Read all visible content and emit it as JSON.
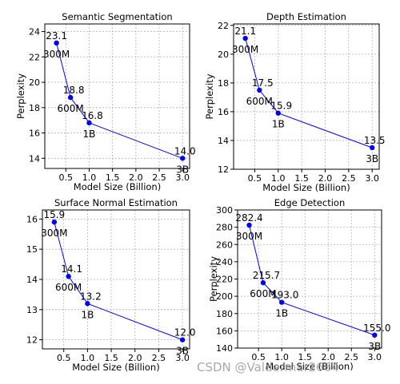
{
  "chart_data": [
    {
      "type": "line",
      "title": "Semantic Segmentation",
      "xlabel": "Model Size (Billion)",
      "ylabel": "Perplexity",
      "xlim": [
        0.05,
        3.15
      ],
      "ylim": [
        13.2,
        24.6
      ],
      "xticks": [
        0.5,
        1.0,
        1.5,
        2.0,
        2.5,
        3.0
      ],
      "yticks": [
        14,
        16,
        18,
        20,
        22,
        24
      ],
      "ytick_decimals": 0,
      "grid": true,
      "series": [
        {
          "x": [
            0.3,
            0.6,
            1.0,
            3.0
          ],
          "y": [
            23.1,
            18.8,
            16.8,
            14.0
          ],
          "value_labels": [
            "23.1",
            "18.8",
            "16.8",
            "14.0"
          ],
          "size_labels": [
            "300M",
            "600M",
            "1B",
            "3B"
          ]
        }
      ]
    },
    {
      "type": "line",
      "title": "Depth Estimation",
      "xlabel": "Model Size (Billion)",
      "ylabel": "Perplexity",
      "xlim": [
        0.05,
        3.15
      ],
      "ylim": [
        12.0,
        22.1
      ],
      "xticks": [
        0.5,
        1.0,
        1.5,
        2.0,
        2.5,
        3.0
      ],
      "yticks": [
        12,
        14,
        16,
        18,
        20,
        22
      ],
      "ytick_decimals": 0,
      "grid": true,
      "series": [
        {
          "x": [
            0.3,
            0.6,
            1.0,
            3.0
          ],
          "y": [
            21.1,
            17.5,
            15.9,
            13.5
          ],
          "value_labels": [
            "21.1",
            "17.5",
            "15.9",
            "13.5"
          ],
          "size_labels": [
            "300M",
            "600M",
            "1B",
            "3B"
          ]
        }
      ]
    },
    {
      "type": "line",
      "title": "Surface Normal Estimation",
      "xlabel": "Model Size (Billion)",
      "ylabel": "",
      "xlim": [
        0.05,
        3.15
      ],
      "ylim": [
        11.7,
        16.3
      ],
      "xticks": [
        0.5,
        1.0,
        1.5,
        2.0,
        2.5,
        3.0
      ],
      "yticks": [
        12,
        13,
        14,
        15,
        16
      ],
      "ytick_decimals": 0,
      "grid": true,
      "series": [
        {
          "x": [
            0.3,
            0.6,
            1.0,
            3.0
          ],
          "y": [
            15.9,
            14.1,
            13.2,
            12.0
          ],
          "value_labels": [
            "15.9",
            "14.1",
            "13.2",
            "12.0"
          ],
          "size_labels": [
            "300M",
            "600M",
            "1B",
            "3B"
          ]
        }
      ]
    },
    {
      "type": "line",
      "title": "Edge Detection",
      "xlabel": "Model Size (Billion)",
      "ylabel": "Perplexity",
      "xlim": [
        0.05,
        3.15
      ],
      "ylim": [
        140,
        300
      ],
      "xticks": [
        0.5,
        1.0,
        1.5,
        2.0,
        2.5,
        3.0
      ],
      "yticks": [
        140,
        160,
        180,
        200,
        220,
        240,
        260,
        280,
        300
      ],
      "ytick_decimals": 0,
      "grid": true,
      "series": [
        {
          "x": [
            0.3,
            0.6,
            1.0,
            3.0
          ],
          "y": [
            282.4,
            215.7,
            193.0,
            155.0
          ],
          "value_labels": [
            "282.4",
            "215.7",
            "193.0",
            "155.0"
          ],
          "size_labels": [
            "300M",
            "600M",
            "1B",
            "3B"
          ]
        }
      ]
    }
  ],
  "style": {
    "line_color": "#0000ff",
    "marker_color": "#0000ff",
    "grid_color": "#b0b0b0"
  },
  "watermark": "CSDN @Valdermar2664"
}
